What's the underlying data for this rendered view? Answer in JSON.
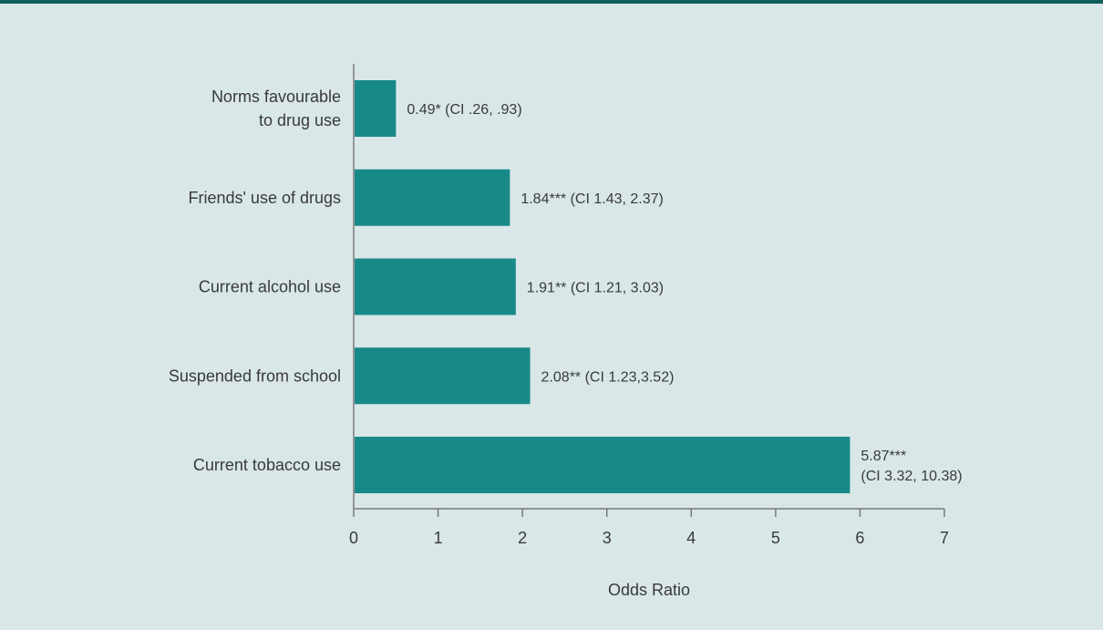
{
  "chart_data": {
    "type": "bar",
    "orientation": "horizontal",
    "categories": [
      [
        "Norms favourable",
        "to drug use"
      ],
      [
        "Friends' use of drugs"
      ],
      [
        "Current alcohol use"
      ],
      [
        "Suspended from school"
      ],
      [
        "Current tobacco use"
      ]
    ],
    "values": [
      0.49,
      1.84,
      1.91,
      2.08,
      5.87
    ],
    "data_labels": [
      [
        "0.49* (CI .26, .93)"
      ],
      [
        "1.84*** (CI 1.43, 2.37)"
      ],
      [
        "1.91** (CI 1.21, 3.03)"
      ],
      [
        "2.08** (CI 1.23,3.52)"
      ],
      [
        "5.87***",
        "(CI 3.32, 10.38)"
      ]
    ],
    "xlabel": "Odds Ratio",
    "xlim": [
      0,
      7
    ],
    "xticks": [
      "0",
      "1",
      "2",
      "3",
      "4",
      "5",
      "6",
      "7"
    ],
    "bar_color": "#178a88",
    "axis_color": "#7a7a7a",
    "grid": false,
    "legend": "none"
  }
}
